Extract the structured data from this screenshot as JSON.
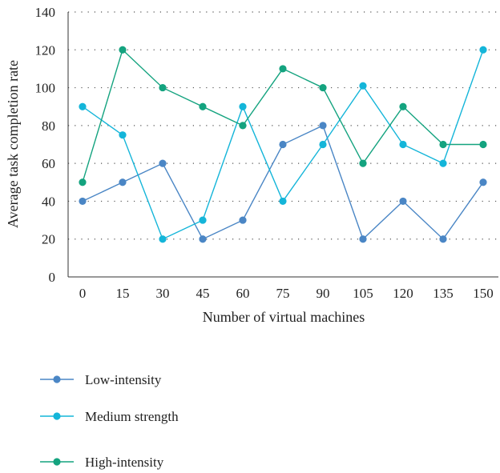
{
  "chart_data": {
    "type": "line",
    "title": "",
    "xlabel": "Number of virtual machines",
    "ylabel": "Average task completion rate",
    "x": [
      0,
      15,
      30,
      45,
      60,
      75,
      90,
      105,
      120,
      135,
      150
    ],
    "x_tick_labels": [
      "0",
      "15",
      "30",
      "45",
      "60",
      "75",
      "90",
      "105",
      "120",
      "135",
      "150"
    ],
    "y_ticks": [
      0,
      20,
      40,
      60,
      80,
      100,
      120,
      140
    ],
    "y_tick_labels": [
      "0",
      "20",
      "40",
      "60",
      "80",
      "100",
      "120",
      "140"
    ],
    "ylim": [
      0,
      140
    ],
    "grid": "horizontal-dotted",
    "legend_position": "bottom",
    "series": [
      {
        "name": "Low-intensity",
        "color": "#4a86c5",
        "values": [
          40,
          50,
          60,
          20,
          30,
          70,
          80,
          20,
          40,
          20,
          50
        ]
      },
      {
        "name": "Medium strength",
        "color": "#14b5d9",
        "values": [
          90,
          75,
          20,
          30,
          90,
          40,
          70,
          101,
          70,
          60,
          120
        ]
      },
      {
        "name": "High-intensity",
        "color": "#14a37f",
        "values": [
          50,
          120,
          100,
          90,
          80,
          110,
          100,
          60,
          90,
          70,
          70
        ]
      }
    ]
  }
}
